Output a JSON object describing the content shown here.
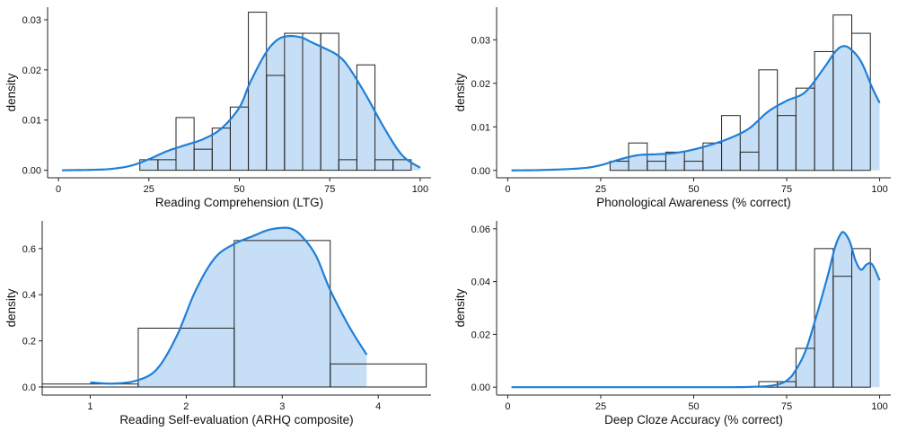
{
  "colors": {
    "density_line": "#1f7fd8",
    "density_fill": "#c7dff6",
    "bar_stroke": "#222222",
    "axis": "#222222"
  },
  "chart_data": [
    {
      "type": "histogram",
      "xlabel": "Reading Comprehension (LTG)",
      "ylabel": "density",
      "xlim": [
        -3,
        103
      ],
      "ylim": [
        -0.0015,
        0.0325
      ],
      "xticks": [
        0,
        25,
        50,
        75,
        100
      ],
      "xtick_labels": [
        "0",
        "25",
        "50",
        "75",
        "100"
      ],
      "yticks": [
        0,
        0.01,
        0.02,
        0.03
      ],
      "ytick_labels": [
        "0.00",
        "0.01",
        "0.02",
        "0.03"
      ],
      "bins": [
        [
          22.5,
          27.5
        ],
        [
          27.5,
          32.5
        ],
        [
          32.5,
          37.5
        ],
        [
          37.5,
          42.5
        ],
        [
          42.5,
          47.5
        ],
        [
          47.5,
          52.5
        ],
        [
          52.5,
          57.5
        ],
        [
          57.5,
          62.5
        ],
        [
          62.5,
          67.5
        ],
        [
          67.5,
          72.5
        ],
        [
          72.5,
          77.5
        ],
        [
          77.5,
          82.5
        ],
        [
          82.5,
          87.5
        ],
        [
          87.5,
          92.5
        ],
        [
          92.5,
          97.5
        ]
      ],
      "bar_heights": [
        0.0021,
        0.0021,
        0.0105,
        0.0042,
        0.0084,
        0.0126,
        0.0315,
        0.0189,
        0.0273,
        0.0273,
        0.0273,
        0.0021,
        0.021,
        0.0021,
        0.0021
      ],
      "density_x": [
        1,
        10,
        15,
        20,
        25,
        30,
        35,
        40,
        45,
        50,
        53,
        57,
        60,
        63,
        67,
        70,
        73,
        77,
        80,
        85,
        90,
        95,
        100
      ],
      "density_y": [
        0,
        0.0001,
        0.0003,
        0.0009,
        0.0022,
        0.0038,
        0.005,
        0.0062,
        0.0083,
        0.0125,
        0.0175,
        0.023,
        0.0257,
        0.0267,
        0.0265,
        0.0255,
        0.0245,
        0.023,
        0.0208,
        0.015,
        0.0085,
        0.003,
        0.0005
      ],
      "density_fill_range": [
        22.5,
        100
      ]
    },
    {
      "type": "histogram",
      "xlabel": "Phonological Awareness (% correct)",
      "ylabel": "density",
      "xlim": [
        -3,
        103
      ],
      "ylim": [
        -0.0017,
        0.0375
      ],
      "xticks": [
        0,
        25,
        50,
        75,
        100
      ],
      "xtick_labels": [
        "0",
        "25",
        "50",
        "75",
        "100"
      ],
      "yticks": [
        0,
        0.01,
        0.02,
        0.03
      ],
      "ytick_labels": [
        "0.00",
        "0.01",
        "0.02",
        "0.03"
      ],
      "bins": [
        [
          27.5,
          32.5
        ],
        [
          32.5,
          37.5
        ],
        [
          37.5,
          42.5
        ],
        [
          42.5,
          47.5
        ],
        [
          47.5,
          52.5
        ],
        [
          52.5,
          57.5
        ],
        [
          57.5,
          62.5
        ],
        [
          62.5,
          67.5
        ],
        [
          67.5,
          72.5
        ],
        [
          72.5,
          77.5
        ],
        [
          77.5,
          82.5
        ],
        [
          82.5,
          87.5
        ],
        [
          87.5,
          92.5
        ],
        [
          92.5,
          97.5
        ]
      ],
      "bar_heights": [
        0.0021,
        0.0063,
        0.0021,
        0.0042,
        0.0021,
        0.0063,
        0.0126,
        0.0042,
        0.0231,
        0.0126,
        0.0189,
        0.0273,
        0.0357,
        0.0315
      ],
      "density_x": [
        1,
        10,
        20,
        25,
        30,
        35,
        40,
        45,
        50,
        55,
        60,
        65,
        70,
        75,
        80,
        85,
        88,
        90,
        92,
        95,
        98,
        100
      ],
      "density_y": [
        0,
        0.0001,
        0.0005,
        0.0012,
        0.0025,
        0.0035,
        0.0037,
        0.004,
        0.0048,
        0.006,
        0.0075,
        0.0097,
        0.0135,
        0.016,
        0.018,
        0.0235,
        0.0272,
        0.0285,
        0.028,
        0.025,
        0.019,
        0.0155
      ],
      "density_fill_range": [
        27.5,
        100
      ]
    },
    {
      "type": "histogram",
      "xlabel": "Reading Self-evaluation (ARHQ composite)",
      "ylabel": "density",
      "xlim": [
        0.5,
        4.55
      ],
      "ylim": [
        -0.035,
        0.72
      ],
      "xticks": [
        1,
        2,
        3,
        4
      ],
      "xtick_labels": [
        "1",
        "2",
        "3",
        "4"
      ],
      "yticks": [
        0,
        0.2,
        0.4,
        0.6
      ],
      "ytick_labels": [
        "0.0",
        "0.2",
        "0.4",
        "0.6"
      ],
      "bins": [
        [
          0.5,
          1.5
        ],
        [
          1.5,
          2.5
        ],
        [
          2.5,
          3.5
        ],
        [
          3.5,
          4.5
        ]
      ],
      "bar_heights": [
        0.013,
        0.255,
        0.635,
        0.1
      ],
      "density_x": [
        1,
        1.25,
        1.5,
        1.7,
        1.9,
        2.1,
        2.3,
        2.5,
        2.7,
        2.85,
        3,
        3.1,
        3.2,
        3.35,
        3.5,
        3.7,
        3.88
      ],
      "density_y": [
        0.02,
        0.015,
        0.03,
        0.08,
        0.22,
        0.42,
        0.56,
        0.62,
        0.655,
        0.68,
        0.69,
        0.685,
        0.655,
        0.57,
        0.42,
        0.26,
        0.14
      ],
      "density_fill_range": [
        1.5,
        3.88
      ]
    },
    {
      "type": "histogram",
      "xlabel": "Deep Cloze Accuracy (% correct)",
      "ylabel": "density",
      "xlim": [
        -3,
        103
      ],
      "ylim": [
        -0.003,
        0.063
      ],
      "xticks": [
        0,
        25,
        50,
        75,
        100
      ],
      "xtick_labels": [
        "0",
        "25",
        "50",
        "75",
        "100"
      ],
      "yticks": [
        0,
        0.02,
        0.04,
        0.06
      ],
      "ytick_labels": [
        "0.00",
        "0.02",
        "0.04",
        "0.06"
      ],
      "bins": [
        [
          67.5,
          72.5
        ],
        [
          72.5,
          77.5
        ],
        [
          77.5,
          82.5
        ],
        [
          82.5,
          87.5
        ],
        [
          87.5,
          92.5
        ],
        [
          92.5,
          97.5
        ]
      ],
      "bar_heights": [
        0.0021,
        0.0021,
        0.0147,
        0.0525,
        0.042,
        0.0525
      ],
      "density_x": [
        1,
        20,
        40,
        60,
        65,
        70,
        73,
        75,
        77,
        80,
        83,
        86,
        88,
        89.5,
        90.5,
        92,
        93.5,
        95,
        96.5,
        98,
        100
      ],
      "density_y": [
        0,
        0,
        0,
        0,
        0.0001,
        0.0004,
        0.0012,
        0.0025,
        0.0055,
        0.0135,
        0.027,
        0.042,
        0.053,
        0.058,
        0.0585,
        0.055,
        0.048,
        0.0445,
        0.0465,
        0.0465,
        0.0405
      ],
      "density_fill_range": [
        72.5,
        100
      ]
    }
  ]
}
